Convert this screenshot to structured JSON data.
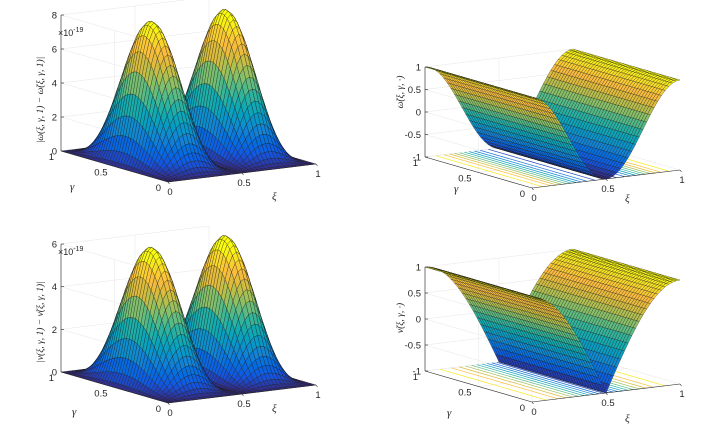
{
  "chart_data": [
    {
      "id": "error_omega",
      "type": "surface3d",
      "function": "error_quadruple_sin",
      "amplitude": 8.2e-19,
      "zlim": [
        0,
        8
      ],
      "zticks": [
        "0",
        "2",
        "4",
        "6",
        "8"
      ],
      "z_exponent": "×10",
      "z_exponent_power": "-19",
      "xticks": [
        "0",
        "0.5",
        "1"
      ],
      "yticks": [
        "0",
        "0.5",
        "1"
      ],
      "xlabel": "ξ",
      "ylabel": "γ",
      "zlabel": "|ω(ξ, γ, 1) − ω̃(ξ, γ, 1)|",
      "contours": false
    },
    {
      "id": "omega_tilde",
      "type": "surface3d",
      "function": "cos_2pi_xi",
      "zlim": [
        -1,
        1
      ],
      "zticks": [
        "-1",
        "-0.5",
        "0",
        "0.5",
        "1"
      ],
      "xticks": [
        "0",
        "0.5",
        "1"
      ],
      "yticks": [
        "0",
        "0.5",
        "1"
      ],
      "xlabel": "ξ",
      "ylabel": "γ",
      "zlabel": "ω̃(ξ, γ, ·)",
      "contours": true
    },
    {
      "id": "error_nu",
      "type": "surface3d",
      "function": "error_quadruple_sin",
      "amplitude": 6.3e-19,
      "zlim": [
        0,
        6
      ],
      "zticks": [
        "0",
        "2",
        "4",
        "6"
      ],
      "z_exponent": "×10",
      "z_exponent_power": "-19",
      "xticks": [
        "0",
        "0.5",
        "1"
      ],
      "yticks": [
        "0",
        "0.5",
        "1"
      ],
      "xlabel": "ξ",
      "ylabel": "γ",
      "zlabel": "|ν(ξ, γ, 1) − ν̃(ξ, γ, 1)|",
      "contours": false
    },
    {
      "id": "nu_tilde",
      "type": "surface3d",
      "function": "abs_cos_pi_xi_cusp",
      "zlim": [
        -1,
        1
      ],
      "zticks": [
        "-1",
        "-0.5",
        "0",
        "0.5",
        "1"
      ],
      "xticks": [
        "0",
        "0.5",
        "1"
      ],
      "yticks": [
        "0",
        "0.5",
        "1"
      ],
      "xlabel": "ξ",
      "ylabel": "γ",
      "zlabel": "ν̃(ξ, γ, ·)",
      "contours": true
    }
  ]
}
